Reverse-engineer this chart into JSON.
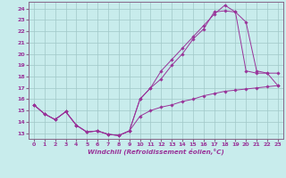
{
  "xlabel": "Windchill (Refroidissement éolien,°C)",
  "background_color": "#c8ecec",
  "line_color": "#993399",
  "grid_color": "#a0c8c8",
  "spine_color": "#886688",
  "xlim_min": -0.5,
  "xlim_max": 23.5,
  "ylim_min": 12.5,
  "ylim_max": 24.6,
  "yticks": [
    13,
    14,
    15,
    16,
    17,
    18,
    19,
    20,
    21,
    22,
    23,
    24
  ],
  "xticks": [
    0,
    1,
    2,
    3,
    4,
    5,
    6,
    7,
    8,
    9,
    10,
    11,
    12,
    13,
    14,
    15,
    16,
    17,
    18,
    19,
    20,
    21,
    22,
    23
  ],
  "line1_x": [
    0,
    1,
    2,
    3,
    4,
    5,
    6,
    7,
    8,
    9,
    10,
    11,
    12,
    13,
    14,
    15,
    16,
    17,
    18,
    19,
    20,
    21,
    22,
    23
  ],
  "line1_y": [
    15.5,
    14.7,
    14.2,
    14.9,
    13.7,
    13.1,
    13.2,
    12.9,
    12.8,
    13.2,
    16.0,
    17.0,
    18.5,
    19.5,
    20.5,
    21.5,
    22.5,
    23.5,
    24.3,
    23.7,
    22.8,
    18.5,
    18.3,
    18.3
  ],
  "line2_x": [
    0,
    1,
    2,
    3,
    4,
    5,
    6,
    7,
    8,
    9,
    10,
    11,
    12,
    13,
    14,
    15,
    16,
    17,
    18,
    19,
    20,
    21,
    22,
    23
  ],
  "line2_y": [
    15.5,
    14.7,
    14.2,
    14.9,
    13.7,
    13.1,
    13.2,
    12.9,
    12.8,
    13.2,
    16.0,
    17.0,
    17.8,
    19.0,
    20.0,
    21.3,
    22.2,
    23.7,
    23.8,
    23.7,
    18.5,
    18.3,
    18.3,
    17.2
  ],
  "line3_x": [
    0,
    1,
    2,
    3,
    4,
    5,
    6,
    7,
    8,
    9,
    10,
    11,
    12,
    13,
    14,
    15,
    16,
    17,
    18,
    19,
    20,
    21,
    22,
    23
  ],
  "line3_y": [
    15.5,
    14.7,
    14.2,
    14.9,
    13.7,
    13.1,
    13.2,
    12.9,
    12.8,
    13.2,
    14.5,
    15.0,
    15.3,
    15.5,
    15.8,
    16.0,
    16.3,
    16.5,
    16.7,
    16.8,
    16.9,
    17.0,
    17.1,
    17.2
  ]
}
